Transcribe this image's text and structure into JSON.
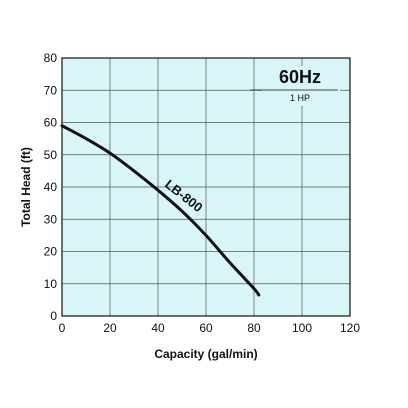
{
  "chart_data": {
    "type": "line",
    "title": "",
    "xlabel": "Capacity (gal/min)",
    "ylabel": "Total Head (ft)",
    "xlim": [
      0,
      120
    ],
    "ylim": [
      0,
      80
    ],
    "xticks": [
      0,
      20,
      40,
      60,
      80,
      100,
      120
    ],
    "yticks": [
      0,
      10,
      20,
      30,
      40,
      50,
      60,
      70,
      80
    ],
    "grid": true,
    "background_color": "#d8f5f7",
    "line_color": "#111111",
    "annotations": {
      "frequency": "60Hz",
      "power": "1 HP"
    },
    "series": [
      {
        "name": "LB-800",
        "x": [
          0,
          10,
          20,
          30,
          40,
          50,
          60,
          70,
          80,
          82
        ],
        "y": [
          59,
          55,
          50.5,
          45,
          39,
          32.5,
          25,
          16.5,
          8.5,
          6.5
        ]
      }
    ]
  }
}
